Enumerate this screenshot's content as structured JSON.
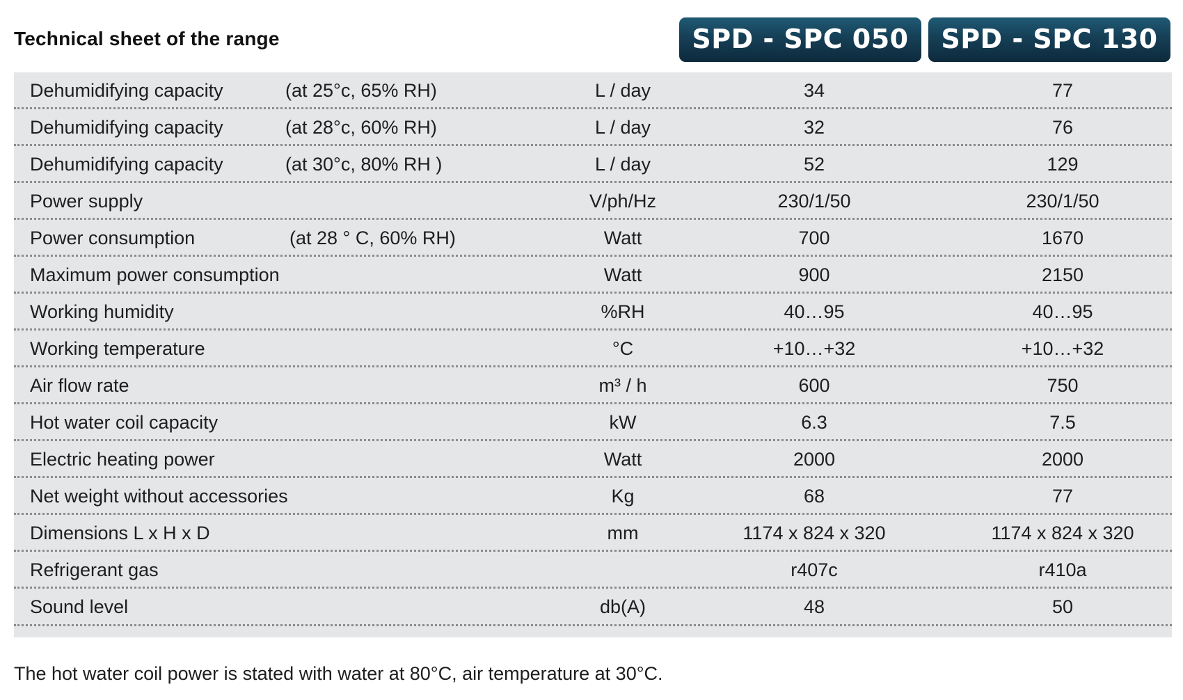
{
  "title": "Technical sheet of the range",
  "models": [
    "SPD - SPC 050",
    "SPD - SPC 130"
  ],
  "rows": [
    {
      "label": "Dehumidifying capacity",
      "condition": "(at 25°c, 65% RH)",
      "unit": "L / day",
      "v1": "34",
      "v2": "77"
    },
    {
      "label": "Dehumidifying capacity",
      "condition": "(at 28°c, 60% RH)",
      "unit": "L / day",
      "v1": "32",
      "v2": "76"
    },
    {
      "label": "Dehumidifying capacity",
      "condition": "(at 30°c, 80% RH )",
      "unit": "L / day",
      "v1": "52",
      "v2": "129"
    },
    {
      "label": "Power supply",
      "condition": "",
      "unit": "V/ph/Hz",
      "v1": "230/1/50",
      "v2": "230/1/50"
    },
    {
      "label": "Power consumption",
      "condition": "(at 28 ° C, 60% RH)",
      "unit": "Watt",
      "v1": "700",
      "v2": "1670"
    },
    {
      "label": "Maximum power consumption",
      "condition": "",
      "unit": "Watt",
      "v1": "900",
      "v2": "2150"
    },
    {
      "label": "Working humidity",
      "condition": "",
      "unit": "%RH",
      "v1": "40…95",
      "v2": "40…95"
    },
    {
      "label": "Working temperature",
      "condition": "",
      "unit": "°C",
      "v1": "+10…+32",
      "v2": "+10…+32"
    },
    {
      "label": "Air flow rate",
      "condition": "",
      "unit": "m³ / h",
      "v1": "600",
      "v2": "750"
    },
    {
      "label": "Hot water coil capacity",
      "condition": "",
      "unit": "kW",
      "v1": "6.3",
      "v2": "7.5"
    },
    {
      "label": "Electric heating power",
      "condition": "",
      "unit": "Watt",
      "v1": "2000",
      "v2": "2000"
    },
    {
      "label": "Net weight without accessories",
      "condition": "",
      "unit": "Kg",
      "v1": "68",
      "v2": "77"
    },
    {
      "label": "Dimensions L x H x D",
      "condition": "",
      "unit": "mm",
      "v1": "1174 x 824 x 320",
      "v2": "1174 x 824 x 320"
    },
    {
      "label": "Refrigerant gas",
      "condition": "",
      "unit": "",
      "v1": "r407c",
      "v2": "r410a"
    },
    {
      "label": "Sound level",
      "condition": "",
      "unit": "db(A)",
      "v1": "48",
      "v2": "50"
    }
  ],
  "footnote": "The hot water coil power is stated with water at 80°C, air temperature at 30°C.",
  "colors": {
    "header_tab": "#163f56",
    "table_bg": "#e5e6e8",
    "row_divider": "#8c8c8c"
  }
}
